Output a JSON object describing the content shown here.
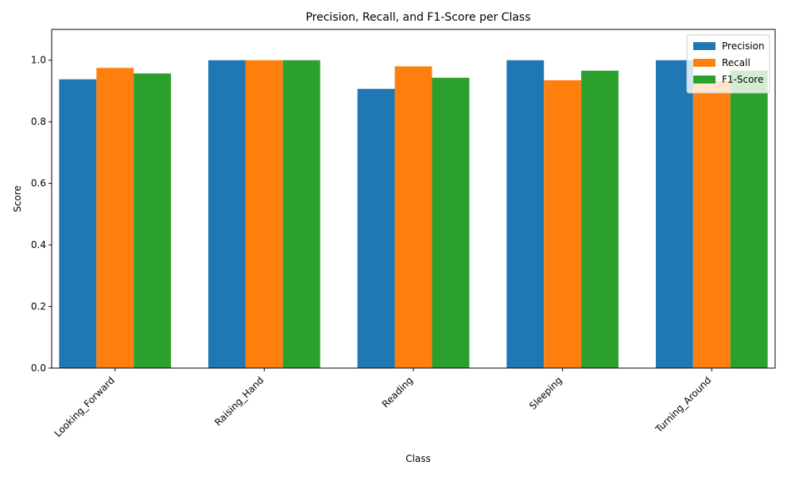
{
  "chart_data": {
    "type": "bar",
    "title": "Precision, Recall, and F1-Score per Class",
    "xlabel": "Class",
    "ylabel": "Score",
    "categories": [
      "Looking_Forward",
      "Raising_Hand",
      "Reading",
      "Sleeping",
      "Turning_Around"
    ],
    "series": [
      {
        "name": "Precision",
        "color": "#1f77b4",
        "values": [
          0.938,
          1.0,
          0.907,
          1.0,
          1.0
        ]
      },
      {
        "name": "Recall",
        "color": "#ff7f0e",
        "values": [
          0.975,
          1.0,
          0.98,
          0.935,
          0.933
        ]
      },
      {
        "name": "F1-Score",
        "color": "#2ca02c",
        "values": [
          0.957,
          1.0,
          0.943,
          0.966,
          0.966
        ]
      }
    ],
    "ylim": [
      0,
      1.1
    ],
    "yticks": [
      "0.0",
      "0.2",
      "0.4",
      "0.6",
      "0.8",
      "1.0"
    ],
    "grid": false,
    "legend_position": "top-right"
  }
}
